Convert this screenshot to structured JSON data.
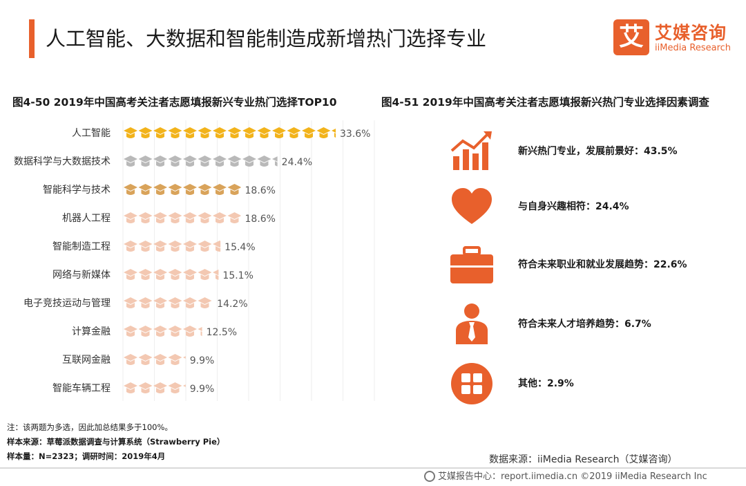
{
  "page_title": "人工智能、大数据和智能制造成新增热门选择专业",
  "logo": {
    "cn": "艾媒咨询",
    "en": "iiMedia Research",
    "mark": "艾"
  },
  "colors": {
    "accent": "#e8602c",
    "gold": "#f2b31b",
    "gray": "#b9b9b9",
    "tan": "#d9a35a",
    "peach": "#f3c8b2"
  },
  "chart_data": [
    {
      "type": "bar",
      "title": "图4-50 2019年中国高考关注者志愿填报新兴专业热门选择TOP10",
      "categories": [
        "人工智能",
        "数据科学与大数据技术",
        "智能科学与技术",
        "机器人工程",
        "智能制造工程",
        "网络与新媒体",
        "电子竞技运动与管理",
        "计算金融",
        "互联网金融",
        "智能车辆工程"
      ],
      "values": [
        33.6,
        24.4,
        18.6,
        18.6,
        15.4,
        15.1,
        14.2,
        12.5,
        9.9,
        9.9
      ],
      "value_labels": [
        "33.6%",
        "24.4%",
        "18.6%",
        "18.6%",
        "15.4%",
        "15.1%",
        "14.2%",
        "12.5%",
        "9.9%",
        "9.9%"
      ],
      "unit": "%",
      "icon": "graduation-cap-icon"
    },
    {
      "type": "table",
      "title": "图4-51 2019年中国高考关注者志愿填报新兴热门专业选择因素调查",
      "rows": [
        {
          "label": "新兴热门专业，发展前景好：43.5%",
          "value": 43.5,
          "icon": "rising-chart-icon"
        },
        {
          "label": "与自身兴趣相符：24.4%",
          "value": 24.4,
          "icon": "heart-icon"
        },
        {
          "label": "符合未来职业和就业发展趋势：22.6%",
          "value": 22.6,
          "icon": "briefcase-icon"
        },
        {
          "label": "符合未来人才培养趋势：6.7%",
          "value": 6.7,
          "icon": "person-tie-icon"
        },
        {
          "label": "其他：2.9%",
          "value": 2.9,
          "icon": "grid-circle-icon"
        }
      ]
    }
  ],
  "notes": {
    "note": "注：该两题为多选，因此加总结果多于100%。",
    "sample_source": "样本来源：草莓派数据调查与计算系统（Strawberry Pie）",
    "sample_size": "样本量：N=2323；调研时间：2019年4月"
  },
  "data_source": "数据来源：iiMedia Research（艾媒咨询）",
  "footer": "艾媒报告中心：report.iimedia.cn  ©2019  iiMedia Research  Inc"
}
